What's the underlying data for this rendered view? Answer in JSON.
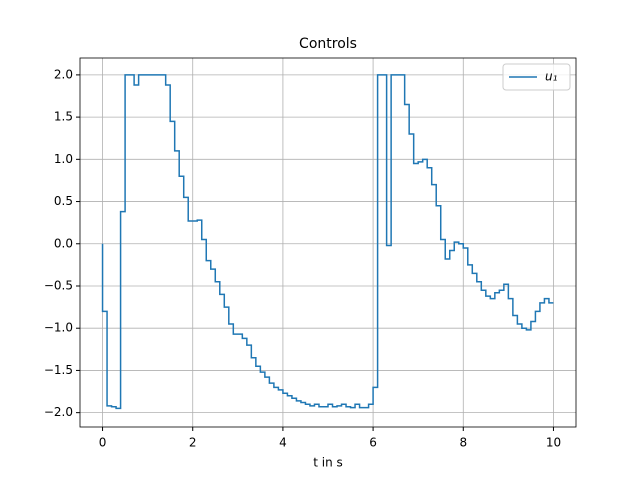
{
  "chart_data": {
    "type": "line",
    "step": "pre",
    "title": "Controls",
    "xlabel": "t in s",
    "x": [
      0,
      0.1,
      0.2,
      0.3,
      0.4,
      0.5,
      0.6,
      0.7,
      0.8,
      0.9,
      1.0,
      1.1,
      1.2,
      1.3,
      1.4,
      1.5,
      1.6,
      1.7,
      1.8,
      1.9,
      2.0,
      2.1,
      2.2,
      2.3,
      2.4,
      2.5,
      2.6,
      2.7,
      2.8,
      2.9,
      3.0,
      3.1,
      3.2,
      3.3,
      3.4,
      3.5,
      3.6,
      3.7,
      3.8,
      3.9,
      4.0,
      4.1,
      4.2,
      4.3,
      4.4,
      4.5,
      4.6,
      4.7,
      4.8,
      4.9,
      5.0,
      5.1,
      5.2,
      5.3,
      5.4,
      5.5,
      5.6,
      5.7,
      5.8,
      5.9,
      6.0,
      6.1,
      6.2,
      6.3,
      6.4,
      6.5,
      6.6,
      6.7,
      6.8,
      6.9,
      7.0,
      7.1,
      7.2,
      7.3,
      7.4,
      7.5,
      7.6,
      7.7,
      7.8,
      7.9,
      8.0,
      8.1,
      8.2,
      8.3,
      8.4,
      8.5,
      8.6,
      8.7,
      8.8,
      8.9,
      9.0,
      9.1,
      9.2,
      9.3,
      9.4,
      9.5,
      9.6,
      9.7,
      9.8,
      9.9,
      10.0
    ],
    "series": [
      {
        "name": "u₁",
        "color": "#1f77b4",
        "values": [
          0,
          -0.8,
          -1.92,
          -1.93,
          -1.95,
          0.38,
          2.0,
          2.0,
          1.88,
          2.0,
          2.0,
          2.0,
          2.0,
          2.0,
          2.0,
          1.88,
          1.45,
          1.1,
          0.8,
          0.55,
          0.27,
          0.27,
          0.28,
          0.05,
          -0.2,
          -0.3,
          -0.45,
          -0.6,
          -0.75,
          -0.95,
          -1.07,
          -1.07,
          -1.12,
          -1.2,
          -1.35,
          -1.45,
          -1.52,
          -1.58,
          -1.65,
          -1.7,
          -1.73,
          -1.77,
          -1.8,
          -1.83,
          -1.86,
          -1.88,
          -1.9,
          -1.92,
          -1.9,
          -1.93,
          -1.93,
          -1.9,
          -1.93,
          -1.92,
          -1.9,
          -1.93,
          -1.94,
          -1.9,
          -1.94,
          -1.94,
          -1.9,
          -1.7,
          2.0,
          2.0,
          -0.02,
          2.0,
          2.0,
          2.0,
          1.65,
          1.3,
          0.95,
          0.97,
          1.0,
          0.9,
          0.7,
          0.45,
          0.05,
          -0.18,
          -0.08,
          0.02,
          0.0,
          -0.05,
          -0.25,
          -0.35,
          -0.45,
          -0.55,
          -0.62,
          -0.65,
          -0.58,
          -0.55,
          -0.48,
          -0.65,
          -0.85,
          -0.95,
          -1.0,
          -1.02,
          -0.92,
          -0.8,
          -0.7,
          -0.65,
          -0.7
        ]
      }
    ],
    "xlim": [
      -0.5,
      10.5
    ],
    "ylim": [
      -2.17,
      2.2
    ],
    "xticks": [
      0,
      2,
      4,
      6,
      8,
      10
    ],
    "yticks": [
      {
        "value": -2,
        "label": "−2.0"
      },
      {
        "value": -1.5,
        "label": "−1.5"
      },
      {
        "value": -1,
        "label": "−1.0"
      },
      {
        "value": -0.5,
        "label": "−0.5"
      },
      {
        "value": 0,
        "label": "0.0"
      },
      {
        "value": 0.5,
        "label": "0.5"
      },
      {
        "value": 1,
        "label": "1.0"
      },
      {
        "value": 1.5,
        "label": "1.5"
      },
      {
        "value": 2,
        "label": "2.0"
      }
    ],
    "grid": true,
    "legend": "upper right"
  }
}
